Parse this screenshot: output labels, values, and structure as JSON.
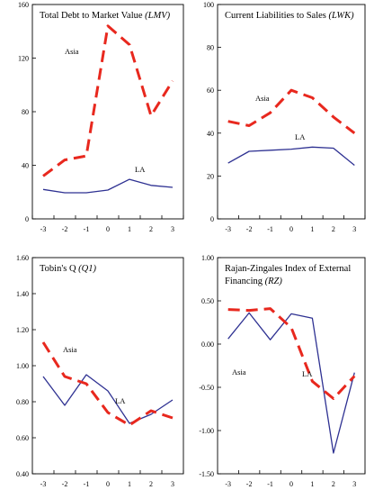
{
  "chart_data": [
    {
      "type": "line",
      "title": "Total Debt to Market Value",
      "title_abbr": "(LMV)",
      "x": [
        -3,
        -2,
        -1,
        0,
        1,
        2,
        3
      ],
      "x_ticks": [
        "-3",
        "-2",
        "-1",
        "0",
        "1",
        "2",
        "3"
      ],
      "ylim": [
        0,
        160
      ],
      "y_ticks": [
        "0",
        "40",
        "80",
        "120",
        "160"
      ],
      "series": [
        {
          "name": "Asia",
          "style": "dashed",
          "color": "#e8281e",
          "values": [
            32,
            44,
            47,
            144,
            130,
            77,
            103
          ]
        },
        {
          "name": "LA",
          "style": "solid",
          "color": "#2e3192",
          "values": [
            22,
            19.5,
            19.5,
            21.5,
            29.5,
            25,
            23.5
          ]
        }
      ]
    },
    {
      "type": "line",
      "title": "Current Liabilities to Sales",
      "title_abbr": "(LWK)",
      "x": [
        -3,
        -2,
        -1,
        0,
        1,
        2,
        3
      ],
      "x_ticks": [
        "-3",
        "-2",
        "-1",
        "0",
        "1",
        "2",
        "3"
      ],
      "ylim": [
        0,
        100
      ],
      "y_ticks": [
        "0",
        "20",
        "40",
        "60",
        "80",
        "100"
      ],
      "series": [
        {
          "name": "Asia",
          "style": "dashed",
          "color": "#e8281e",
          "values": [
            45.5,
            43.5,
            49.5,
            60,
            56.5,
            47.5,
            40
          ]
        },
        {
          "name": "LA",
          "style": "solid",
          "color": "#2e3192",
          "values": [
            26,
            31.5,
            32,
            32.5,
            33.5,
            33,
            25
          ]
        }
      ]
    },
    {
      "type": "line",
      "title": "Tobin's Q",
      "title_abbr": "(Q1)",
      "x": [
        -3,
        -2,
        -1,
        0,
        1,
        2,
        3
      ],
      "x_ticks": [
        "-3",
        "-2",
        "-1",
        "0",
        "1",
        "2",
        "3"
      ],
      "ylim": [
        0.4,
        1.6
      ],
      "y_ticks": [
        "0.40",
        "0.60",
        "0.80",
        "1.00",
        "1.20",
        "1.40",
        "1.60"
      ],
      "series": [
        {
          "name": "Asia",
          "style": "dashed",
          "color": "#e8281e",
          "values": [
            1.13,
            0.94,
            0.9,
            0.74,
            0.67,
            0.75,
            0.71
          ]
        },
        {
          "name": "LA",
          "style": "solid",
          "color": "#2e3192",
          "values": [
            0.94,
            0.78,
            0.95,
            0.86,
            0.68,
            0.73,
            0.81
          ]
        }
      ]
    },
    {
      "type": "line",
      "title": "Rajan-Zingales Index of External",
      "title_line2": "Financing",
      "title_abbr": "(RZ)",
      "x": [
        -3,
        -2,
        -1,
        0,
        1,
        2,
        3
      ],
      "x_ticks": [
        "-3",
        "-2",
        "-1",
        "0",
        "1",
        "2",
        "3"
      ],
      "ylim": [
        -1.5,
        1.0
      ],
      "y_ticks": [
        "-1.50",
        "-1.00",
        "-0.50",
        "0.00",
        "0.50",
        "1.00"
      ],
      "series": [
        {
          "name": "Asia",
          "style": "dashed",
          "color": "#e8281e",
          "values": [
            0.4,
            0.39,
            0.41,
            0.19,
            -0.43,
            -0.63,
            -0.37
          ]
        },
        {
          "name": "LA",
          "style": "solid",
          "color": "#2e3192",
          "values": [
            0.06,
            0.36,
            0.05,
            0.35,
            0.3,
            -1.26,
            -0.33
          ]
        }
      ]
    }
  ]
}
